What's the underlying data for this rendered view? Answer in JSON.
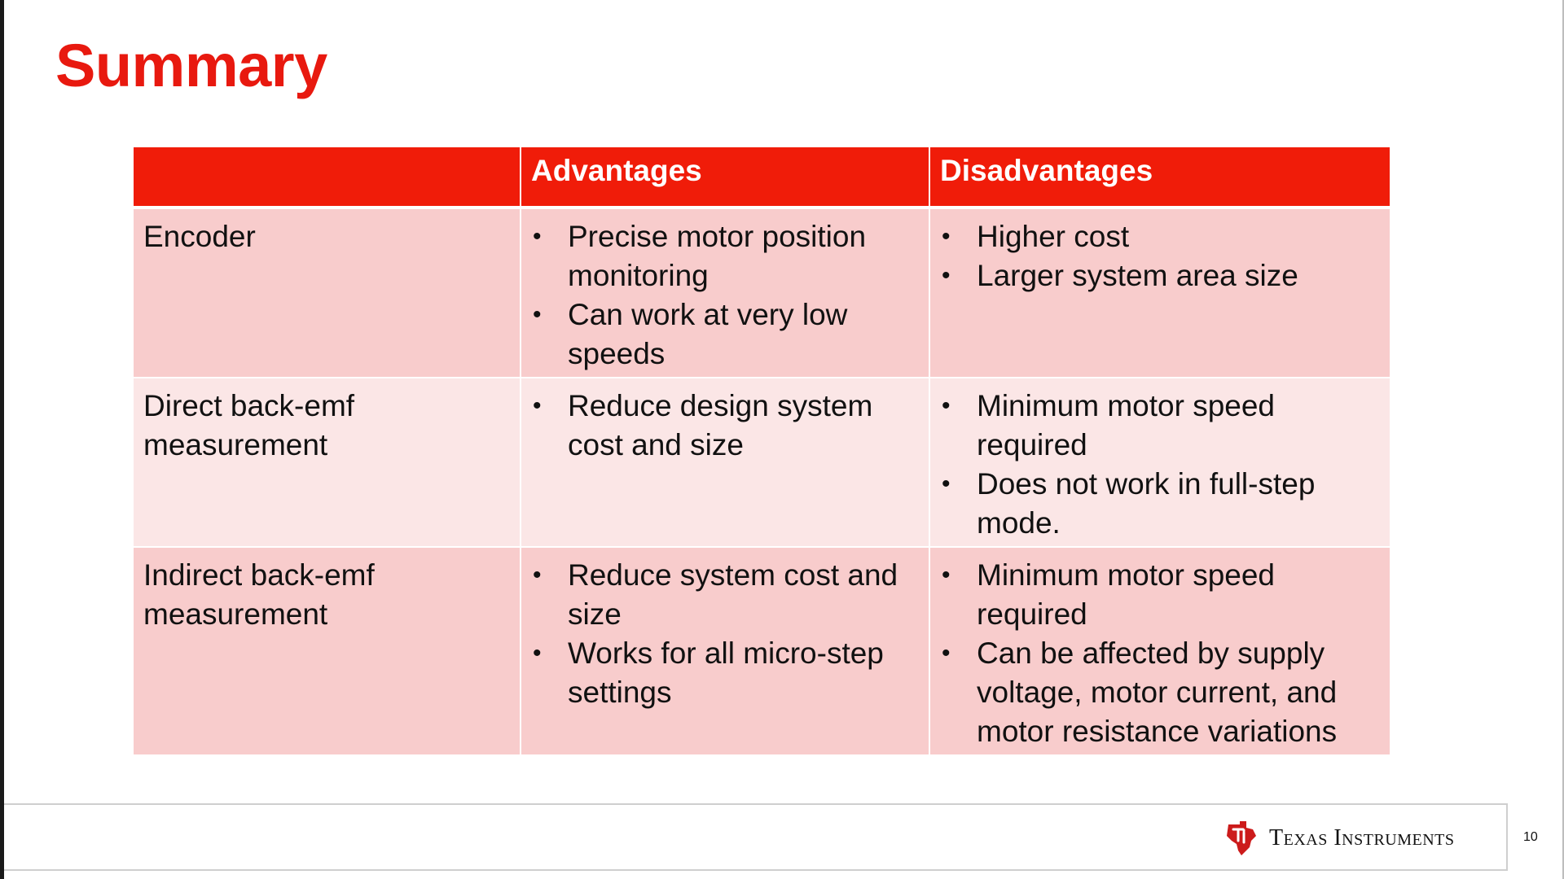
{
  "slide": {
    "title": "Summary",
    "page_number": "10",
    "logo_text": "Texas Instruments",
    "colors": {
      "title": "#e8190f",
      "header_bg": "#f01c09",
      "row_dark": "#f8cccc",
      "row_light": "#fbe6e6",
      "logo_red": "#cc1b1b"
    }
  },
  "table": {
    "headers": [
      "",
      "Advantages",
      "Disadvantages"
    ],
    "rows": [
      {
        "method": "Encoder",
        "advantages": [
          "Precise motor position monitoring",
          "Can work at very low speeds"
        ],
        "disadvantages": [
          "Higher cost",
          "Larger system area size"
        ]
      },
      {
        "method": "Direct back-emf measurement",
        "advantages": [
          "Reduce design system cost and size"
        ],
        "disadvantages": [
          "Minimum motor speed required",
          "Does not work in full-step mode."
        ]
      },
      {
        "method": "Indirect back-emf measurement",
        "advantages": [
          "Reduce system cost and size",
          "Works for all micro-step settings"
        ],
        "disadvantages": [
          "Minimum motor speed required",
          "Can be affected by supply voltage, motor current, and motor resistance variations"
        ]
      }
    ]
  }
}
